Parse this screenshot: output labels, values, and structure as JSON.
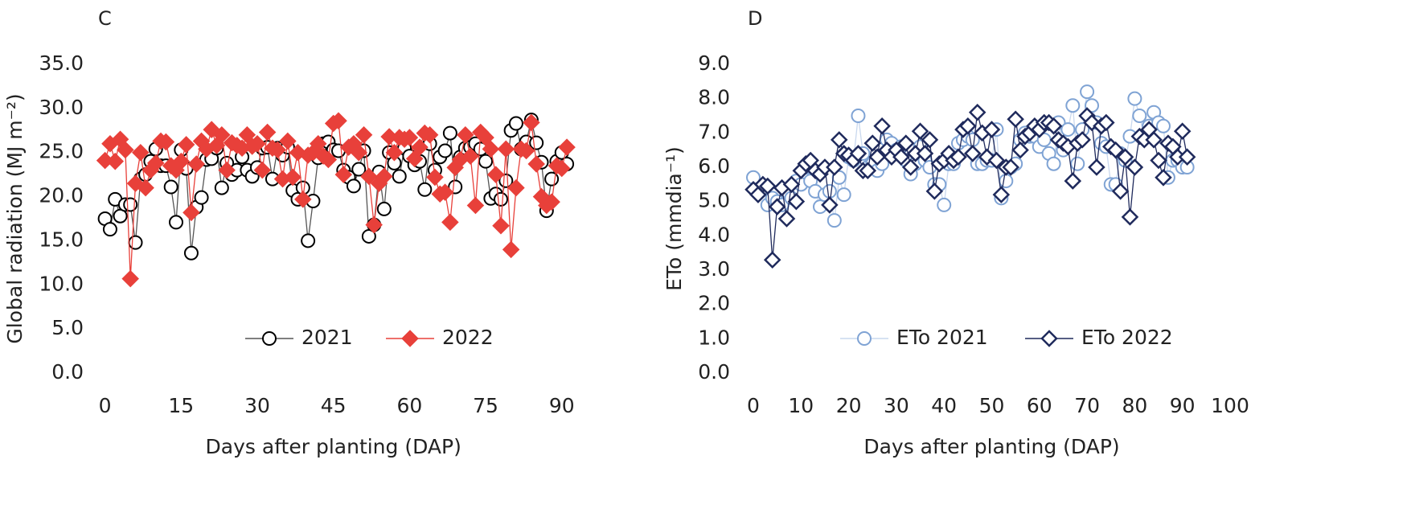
{
  "chart_data": [
    {
      "type": "line",
      "panel_label": "C",
      "xlabel": "Days after planting (DAP)",
      "ylabel": "Global radiation (MJ m⁻²)",
      "x": [
        0,
        1,
        2,
        3,
        4,
        5,
        6,
        7,
        8,
        9,
        10,
        11,
        12,
        13,
        14,
        15,
        16,
        17,
        18,
        19,
        20,
        21,
        22,
        23,
        24,
        25,
        26,
        27,
        28,
        29,
        30,
        31,
        32,
        33,
        34,
        35,
        36,
        37,
        38,
        39,
        40,
        41,
        42,
        43,
        44,
        45,
        46,
        47,
        48,
        49,
        50,
        51,
        52,
        53,
        54,
        55,
        56,
        57,
        58,
        59,
        60,
        61,
        62,
        63,
        64,
        65,
        66,
        67,
        68,
        69,
        70,
        71,
        72,
        73,
        74,
        75,
        76,
        77,
        78,
        79,
        80,
        81,
        82,
        83,
        84,
        85,
        86,
        87,
        88,
        89,
        90,
        91
      ],
      "xlim": [
        -2,
        94
      ],
      "xticks": [
        0,
        15,
        30,
        45,
        60,
        75,
        90
      ],
      "ylim": [
        0,
        35
      ],
      "yticks": [
        {
          "value": 0,
          "label": "0.0"
        },
        {
          "value": 5,
          "label": "5.0"
        },
        {
          "value": 10,
          "label": "10.0"
        },
        {
          "value": 15,
          "label": "15.0"
        },
        {
          "value": 20,
          "label": "20.0"
        },
        {
          "value": 25,
          "label": "25.0"
        },
        {
          "value": 30,
          "label": "30.0"
        },
        {
          "value": 35,
          "label": "35.0"
        }
      ],
      "legend": "lower center",
      "series": [
        {
          "name": "2021",
          "color": "#000000",
          "line_color": "#555555",
          "marker": "circle",
          "marker_fill": "#ffffff",
          "values": [
            17.5,
            16.3,
            19.7,
            17.8,
            19.1,
            19.1,
            14.8,
            22,
            22.5,
            24,
            25.4,
            23.5,
            23.5,
            21.1,
            17.1,
            25.3,
            23.2,
            13.6,
            18.8,
            19.9,
            24.2,
            24.3,
            25.5,
            21,
            23.8,
            22.5,
            23,
            24.5,
            23,
            22.3,
            23.3,
            25.5,
            25.6,
            22,
            25.5,
            24.7,
            25.6,
            20.7,
            19.7,
            21,
            15,
            19.5,
            24.4,
            26,
            26.2,
            25.3,
            25.2,
            23,
            22.2,
            21.2,
            23.1,
            25.2,
            15.5,
            16.8,
            22.8,
            18.6,
            25,
            23.8,
            22.3,
            25.5,
            24.6,
            23.6,
            24,
            20.8,
            26,
            23,
            24.5,
            25.2,
            27.2,
            21.1,
            24.5,
            25.5,
            25.6,
            26,
            25.4,
            24,
            19.8,
            20.3,
            19.7,
            21.8,
            27.5,
            28.3,
            25.4,
            26.2,
            28.7,
            26.1,
            23.9,
            18.4,
            22,
            24,
            25,
            23.7
          ]
        },
        {
          "name": "2022",
          "color": "#e8403a",
          "line_color": "#e8403a",
          "marker": "diamond",
          "marker_fill": "#e8403a",
          "values": [
            24.1,
            26,
            24,
            26.5,
            25.3,
            10.7,
            21.5,
            25,
            21,
            23,
            23.8,
            26.3,
            26.2,
            23.5,
            23,
            24,
            25.9,
            18.2,
            23.7,
            26.3,
            25.4,
            27.6,
            25.8,
            27,
            23,
            26.1,
            25.8,
            25.5,
            27,
            25.7,
            26,
            23,
            27.3,
            25.5,
            25.3,
            22,
            26.3,
            22.2,
            25,
            19.7,
            24.7,
            25,
            26,
            24.6,
            24.2,
            28.3,
            28.6,
            22.5,
            25.6,
            26,
            25,
            27,
            22.3,
            16.8,
            21.5,
            22.3,
            26.8,
            25,
            26.7,
            26.5,
            26.7,
            24.3,
            25.6,
            27.2,
            27,
            22.2,
            20.3,
            20.5,
            17.1,
            23.3,
            24.2,
            27,
            24.6,
            19,
            27.3,
            26.7,
            25.4,
            22.5,
            16.7,
            25.4,
            14,
            21,
            25.4,
            25.2,
            28.4,
            23.7,
            20,
            19,
            19.4,
            23.5,
            23.2,
            25.6
          ]
        }
      ]
    },
    {
      "type": "line",
      "panel_label": "D",
      "xlabel": "Days after planting (DAP)",
      "ylabel": "ETo (mmdia⁻¹)",
      "x": [
        0,
        1,
        2,
        3,
        4,
        5,
        6,
        7,
        8,
        9,
        10,
        11,
        12,
        13,
        14,
        15,
        16,
        17,
        18,
        19,
        20,
        21,
        22,
        23,
        24,
        25,
        26,
        27,
        28,
        29,
        30,
        31,
        32,
        33,
        34,
        35,
        36,
        37,
        38,
        39,
        40,
        41,
        42,
        43,
        44,
        45,
        46,
        47,
        48,
        49,
        50,
        51,
        52,
        53,
        54,
        55,
        56,
        57,
        58,
        59,
        60,
        61,
        62,
        63,
        64,
        65,
        66,
        67,
        68,
        69,
        70,
        71,
        72,
        73,
        74,
        75,
        76,
        77,
        78,
        79,
        80,
        81,
        82,
        83,
        84,
        85,
        86,
        87,
        88,
        89,
        90,
        91
      ],
      "xlim": [
        0,
        100
      ],
      "xticks": [
        0,
        10,
        20,
        30,
        40,
        50,
        60,
        70,
        80,
        90,
        100
      ],
      "ylim": [
        0,
        9
      ],
      "yticks": [
        {
          "value": 0,
          "label": "0.0"
        },
        {
          "value": 1,
          "label": "1.0"
        },
        {
          "value": 2,
          "label": "2.0"
        },
        {
          "value": 3,
          "label": "3.0"
        },
        {
          "value": 4,
          "label": "4.0"
        },
        {
          "value": 5,
          "label": "5.0"
        },
        {
          "value": 6,
          "label": "6.0"
        },
        {
          "value": 7,
          "label": "7.0"
        },
        {
          "value": 8,
          "label": "8.0"
        },
        {
          "value": 9,
          "label": "9.0"
        }
      ],
      "legend": "lower center",
      "series": [
        {
          "name": "ETo 2021",
          "color": "#7fa3d4",
          "line_color": "#c9d8ee",
          "marker": "circle",
          "marker_fill": "#ffffff",
          "values": [
            5.7,
            5.3,
            5.4,
            4.9,
            5.1,
            5,
            4.9,
            5.3,
            5.1,
            5.6,
            5.5,
            6,
            5.6,
            5.3,
            4.85,
            5.2,
            5.3,
            4.45,
            5.7,
            5.2,
            6.3,
            6.2,
            7.5,
            6.4,
            6,
            6.1,
            5.9,
            6.1,
            6.8,
            6.7,
            6.5,
            6.6,
            6.2,
            5.8,
            6.1,
            6.6,
            6.2,
            6,
            5.5,
            5.5,
            4.9,
            6.1,
            6.1,
            6.7,
            6.8,
            6.9,
            6.8,
            6.1,
            6.1,
            6.2,
            6.2,
            7.1,
            5.1,
            5.6,
            6,
            6.1,
            6.8,
            7,
            6.9,
            6.9,
            6.6,
            6.8,
            6.4,
            6.1,
            7.3,
            6.5,
            7.1,
            7.8,
            6.1,
            7.1,
            8.2,
            7.8,
            7.3,
            6.7,
            6.6,
            5.5,
            5.5,
            6.4,
            6.2,
            6.9,
            8,
            7.5,
            6.9,
            7.2,
            7.6,
            7.3,
            7.2,
            5.7,
            6.2,
            6.2,
            6,
            6
          ]
        },
        {
          "name": "ETo 2022",
          "color": "#1f2a5c",
          "line_color": "#1f2a5c",
          "marker": "diamond",
          "marker_fill": "#ffffff",
          "values": [
            5.35,
            5.2,
            5.5,
            5.45,
            3.3,
            4.85,
            5.4,
            4.5,
            5.5,
            5,
            5.9,
            6.1,
            6.2,
            5.9,
            5.8,
            6,
            4.9,
            6,
            6.8,
            6.4,
            6.35,
            6.2,
            6.4,
            5.9,
            5.9,
            6.7,
            6.3,
            7.2,
            6.5,
            6.3,
            6.5,
            6.3,
            6.7,
            6,
            6.4,
            7.05,
            6.4,
            6.8,
            5.3,
            6.1,
            6.2,
            6.4,
            6.2,
            6.3,
            7.1,
            7.2,
            6.4,
            7.6,
            7,
            6.3,
            7.1,
            6.2,
            5.2,
            6,
            6,
            7.4,
            6.5,
            6.9,
            7,
            7.2,
            7.1,
            7.3,
            7.3,
            7.2,
            6.8,
            6.7,
            6.6,
            5.6,
            6.7,
            6.8,
            7.5,
            7.3,
            6,
            7.2,
            7.3,
            6.6,
            6.5,
            5.3,
            6.3,
            4.55,
            6,
            6.9,
            6.8,
            7.1,
            6.8,
            6.2,
            5.7,
            6.7,
            6.6,
            6.3,
            7.05,
            6.3
          ]
        }
      ]
    }
  ]
}
